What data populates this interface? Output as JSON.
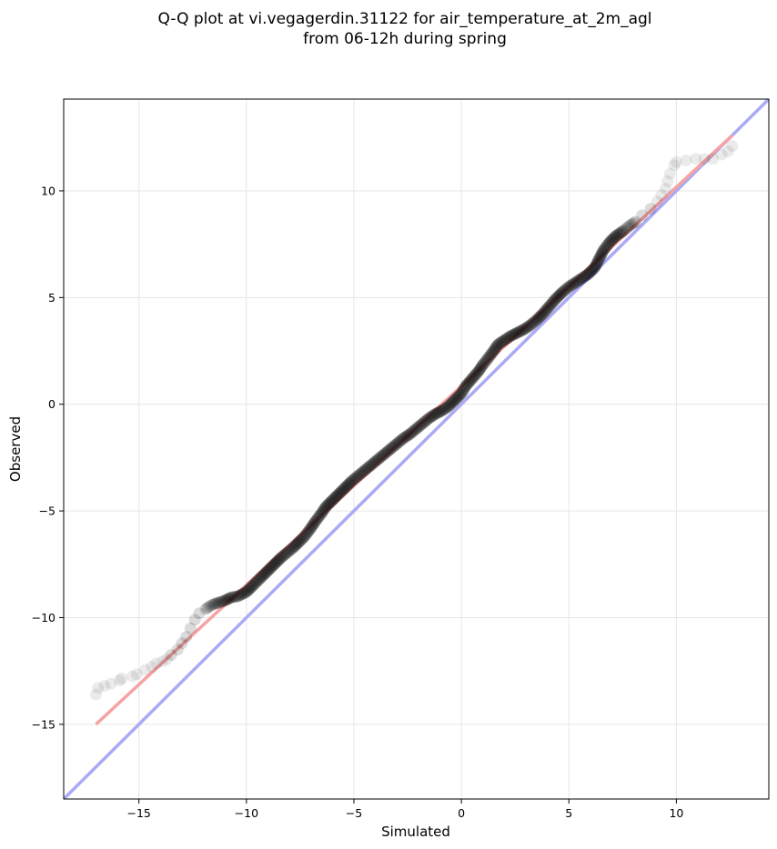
{
  "chart_data": {
    "type": "scatter",
    "title_line1": "Q-Q plot at vi.vegagerdin.31122 for air_temperature_at_2m_agl",
    "title_line2": "from 06-12h during spring",
    "xlabel": "Simulated",
    "ylabel": "Observed",
    "xlim": [
      -18.5,
      14.3
    ],
    "ylim": [
      -18.5,
      14.3
    ],
    "xticks": [
      -15,
      -10,
      -5,
      0,
      5,
      10
    ],
    "yticks": [
      -15,
      -10,
      -5,
      0,
      5,
      10
    ],
    "xtick_labels": [
      "−15",
      "−10",
      "−5",
      "0",
      "5",
      "10"
    ],
    "ytick_labels": [
      "−15",
      "−10",
      "−5",
      "0",
      "5",
      "10"
    ],
    "grid": true,
    "identity_line": {
      "color": "#aaaaf5",
      "points": [
        [
          -18.5,
          -18.5
        ],
        [
          14.3,
          14.3
        ]
      ]
    },
    "fit_line": {
      "color": "#f5a3a3",
      "points": [
        [
          -17.0,
          -15.0
        ],
        [
          12.6,
          12.6
        ]
      ]
    },
    "point_color": "#000000",
    "quantiles": [
      [
        -17.0,
        -13.6
      ],
      [
        -16.9,
        -13.3
      ],
      [
        -16.6,
        -13.2
      ],
      [
        -16.3,
        -13.1
      ],
      [
        -15.9,
        -12.95
      ],
      [
        -15.8,
        -12.85
      ],
      [
        -15.3,
        -12.75
      ],
      [
        -15.1,
        -12.65
      ],
      [
        -14.7,
        -12.45
      ],
      [
        -14.4,
        -12.3
      ],
      [
        -14.2,
        -12.15
      ],
      [
        -13.9,
        -12.05
      ],
      [
        -13.7,
        -11.95
      ],
      [
        -13.5,
        -11.75
      ],
      [
        -13.2,
        -11.5
      ],
      [
        -13.0,
        -11.2
      ],
      [
        -12.8,
        -10.9
      ],
      [
        -12.6,
        -10.5
      ],
      [
        -12.4,
        -10.1
      ],
      [
        -12.2,
        -9.8
      ],
      [
        -11.9,
        -9.6
      ],
      [
        -11.6,
        -9.4
      ],
      [
        -11.3,
        -9.3
      ],
      [
        -11.0,
        -9.2
      ],
      [
        -10.7,
        -9.05
      ],
      [
        -10.4,
        -9.0
      ],
      [
        -10.0,
        -8.8
      ],
      [
        -9.7,
        -8.5
      ],
      [
        -9.3,
        -8.1
      ],
      [
        -9.0,
        -7.8
      ],
      [
        -8.7,
        -7.5
      ],
      [
        -8.4,
        -7.2
      ],
      [
        -8.1,
        -6.95
      ],
      [
        -7.8,
        -6.7
      ],
      [
        -7.5,
        -6.4
      ],
      [
        -7.3,
        -6.2
      ],
      [
        -7.0,
        -5.8
      ],
      [
        -6.8,
        -5.5
      ],
      [
        -6.5,
        -5.1
      ],
      [
        -6.3,
        -4.8
      ],
      [
        -6.0,
        -4.5
      ],
      [
        -5.7,
        -4.2
      ],
      [
        -5.4,
        -3.9
      ],
      [
        -5.1,
        -3.6
      ],
      [
        -4.8,
        -3.35
      ],
      [
        -4.5,
        -3.1
      ],
      [
        -4.2,
        -2.85
      ],
      [
        -3.9,
        -2.6
      ],
      [
        -3.6,
        -2.35
      ],
      [
        -3.3,
        -2.1
      ],
      [
        -3.0,
        -1.85
      ],
      [
        -2.7,
        -1.6
      ],
      [
        -2.4,
        -1.4
      ],
      [
        -2.1,
        -1.15
      ],
      [
        -1.8,
        -0.9
      ],
      [
        -1.5,
        -0.65
      ],
      [
        -1.2,
        -0.45
      ],
      [
        -0.9,
        -0.3
      ],
      [
        -0.6,
        -0.1
      ],
      [
        -0.3,
        0.2
      ],
      [
        0.0,
        0.5
      ],
      [
        0.2,
        0.85
      ],
      [
        0.5,
        1.2
      ],
      [
        0.8,
        1.55
      ],
      [
        1.0,
        1.85
      ],
      [
        1.2,
        2.1
      ],
      [
        1.5,
        2.5
      ],
      [
        1.7,
        2.8
      ],
      [
        2.0,
        3.0
      ],
      [
        2.3,
        3.2
      ],
      [
        2.6,
        3.35
      ],
      [
        2.9,
        3.5
      ],
      [
        3.2,
        3.7
      ],
      [
        3.5,
        3.95
      ],
      [
        3.8,
        4.25
      ],
      [
        4.1,
        4.6
      ],
      [
        4.4,
        4.95
      ],
      [
        4.7,
        5.25
      ],
      [
        5.0,
        5.5
      ],
      [
        5.3,
        5.7
      ],
      [
        5.6,
        5.9
      ],
      [
        5.9,
        6.1
      ],
      [
        6.2,
        6.4
      ],
      [
        6.4,
        6.8
      ],
      [
        6.6,
        7.2
      ],
      [
        6.9,
        7.6
      ],
      [
        7.2,
        7.9
      ],
      [
        7.5,
        8.1
      ],
      [
        7.8,
        8.35
      ],
      [
        8.1,
        8.55
      ],
      [
        8.4,
        8.85
      ],
      [
        8.8,
        9.15
      ],
      [
        9.1,
        9.5
      ],
      [
        9.3,
        9.8
      ],
      [
        9.5,
        10.1
      ],
      [
        9.7,
        10.8
      ],
      [
        9.9,
        11.2
      ],
      [
        10.0,
        11.35
      ],
      [
        10.9,
        11.5
      ],
      [
        11.7,
        11.5
      ],
      [
        12.1,
        11.7
      ],
      [
        12.4,
        11.85
      ],
      [
        12.6,
        12.1
      ]
    ]
  }
}
